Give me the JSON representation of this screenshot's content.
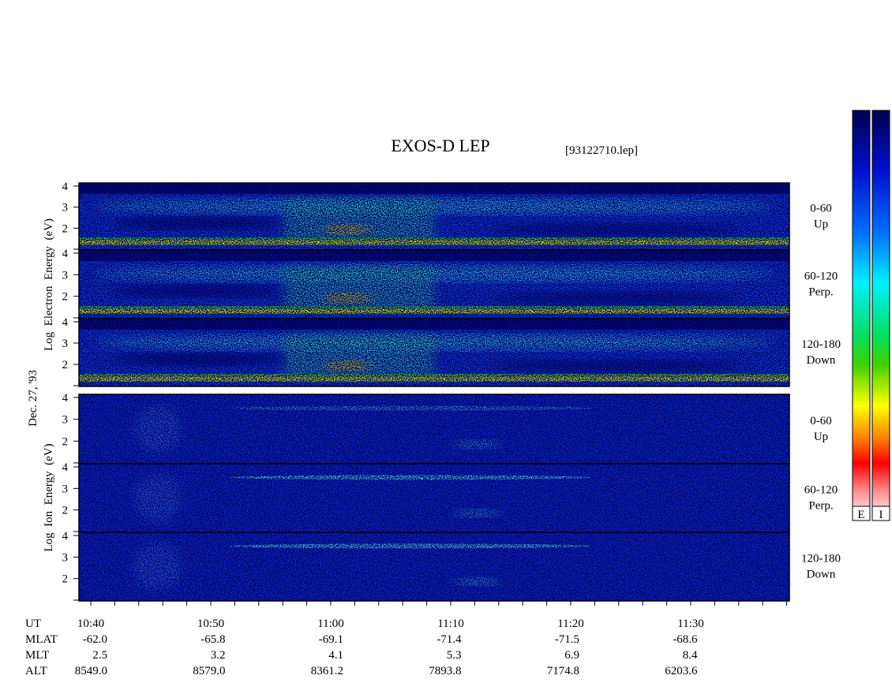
{
  "title": "EXOS-D LEP",
  "file": "[93122710.lep]",
  "date": "Dec. 27, '93",
  "electron": {
    "ylabel": "Log  Electron  Energy  (eV)",
    "panels": [
      {
        "angle": "0-60",
        "dir": "Up",
        "yticks": [
          2,
          3,
          4
        ]
      },
      {
        "angle": "60-120",
        "dir": "Perp.",
        "yticks": [
          2,
          3,
          4
        ]
      },
      {
        "angle": "120-180",
        "dir": "Down",
        "yticks": [
          2,
          3,
          4
        ]
      }
    ]
  },
  "ion": {
    "ylabel": "Log  Ion  Energy  (eV)",
    "panels": [
      {
        "angle": "0-60",
        "dir": "Up",
        "yticks": [
          2,
          3,
          4
        ]
      },
      {
        "angle": "60-120",
        "dir": "Perp.",
        "yticks": [
          2,
          3,
          4
        ]
      },
      {
        "angle": "120-180",
        "dir": "Down",
        "yticks": [
          2,
          3,
          4
        ]
      }
    ]
  },
  "colorbars": [
    "E",
    "I"
  ],
  "footer": {
    "rows": [
      {
        "label": "UT",
        "values": [
          "10:40",
          "10:50",
          "11:00",
          "11:10",
          "11:20",
          "11:30"
        ]
      },
      {
        "label": "MLAT",
        "values": [
          "-62.0",
          "-65.8",
          "-69.1",
          "-71.4",
          "-71.5",
          "-68.6"
        ]
      },
      {
        "label": "MLT",
        "values": [
          "2.5",
          "3.2",
          "4.1",
          "5.3",
          "6.9",
          "8.4"
        ]
      },
      {
        "label": "ALT",
        "values": [
          "8549.0",
          "8579.0",
          "8361.2",
          "7893.8",
          "7174.8",
          "6203.6"
        ]
      }
    ]
  }
}
